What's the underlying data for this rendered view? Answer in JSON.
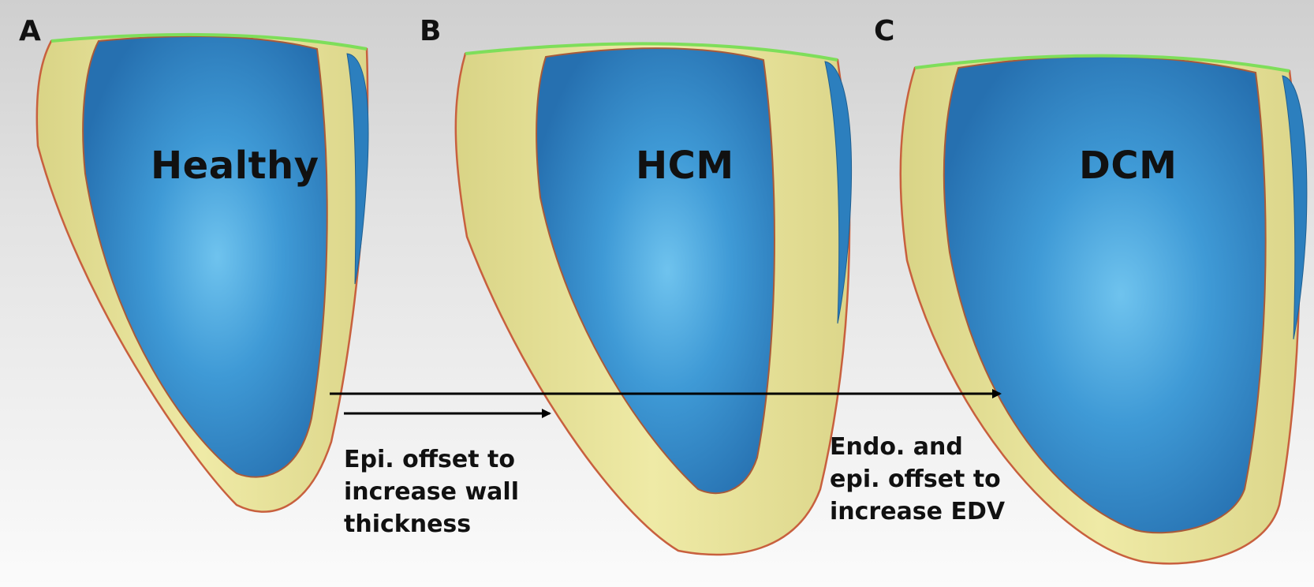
{
  "panels": [
    {
      "letter": "A",
      "label": "Healthy"
    },
    {
      "letter": "B",
      "label": "HCM"
    },
    {
      "letter": "C",
      "label": "DCM"
    }
  ],
  "annotations": {
    "wall_thickness": [
      "Epi. offset to",
      "increase wall",
      "thickness"
    ],
    "edv": [
      "Endo. and",
      "epi. offset to",
      "increase EDV"
    ]
  },
  "colors": {
    "myocardium_wall": "#e8e49a",
    "wall_outline": "#c8603e",
    "endocardium_cavity": "#2f86c4",
    "cavity_highlight": "#6fc3ee",
    "base_rim": "#7ede5a",
    "arrow": "#000000"
  }
}
